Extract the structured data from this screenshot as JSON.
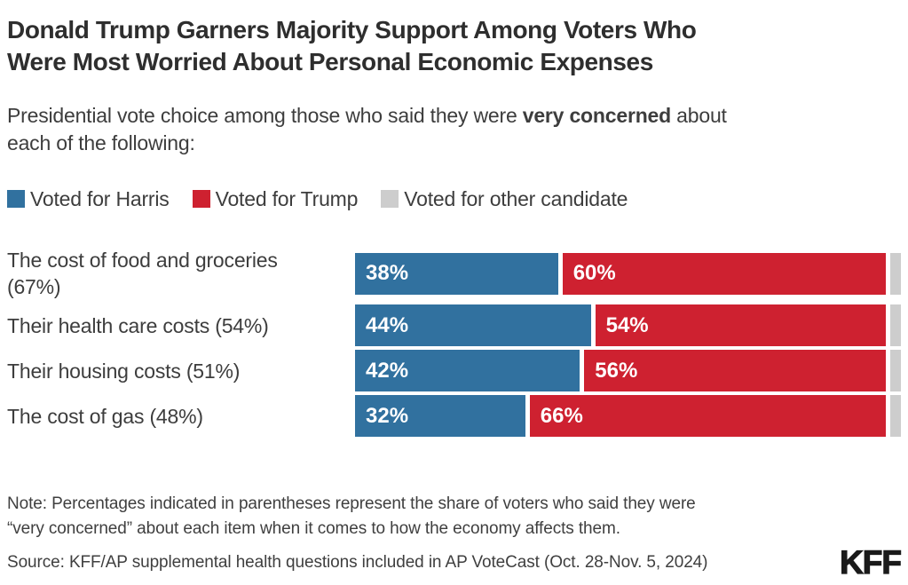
{
  "title": {
    "line1": "Donald Trump Garners Majority Support Among Voters Who",
    "line2": "Were Most Worried About Personal Economic Expenses"
  },
  "subtitle": {
    "prefix": "Presidential vote choice among those who said they were ",
    "bold": "very concerned",
    "suffix": " about",
    "line2": "each of the following:"
  },
  "colors": {
    "harris": "#31719F",
    "trump": "#CE2130",
    "other": "#CDCDCD"
  },
  "legend": [
    {
      "label": "Voted for Harris",
      "color": "#31719F"
    },
    {
      "label": "Voted for Trump",
      "color": "#CE2130"
    },
    {
      "label": "Voted for other candidate",
      "color": "#CDCDCD"
    }
  ],
  "chart_data": {
    "type": "bar",
    "stacked": true,
    "orientation": "horizontal",
    "xlim": [
      0,
      100
    ],
    "grid": false,
    "legend_position": "top",
    "categories": [
      "The cost of food and groceries (67%)",
      "Their health care costs (54%)",
      "Their housing costs (51%)",
      "The cost of gas (48%)"
    ],
    "series": [
      {
        "name": "Voted for Harris",
        "values": [
          38,
          44,
          42,
          32
        ]
      },
      {
        "name": "Voted for Trump",
        "values": [
          60,
          54,
          56,
          66
        ]
      },
      {
        "name": "Voted for other candidate",
        "values": [
          2,
          2,
          2,
          2
        ]
      }
    ],
    "rows": [
      {
        "label": "The cost of food and groceries (67%)",
        "harris": 38,
        "trump": 60,
        "other": 2,
        "harris_label": "38%",
        "trump_label": "60%"
      },
      {
        "label": "Their health care costs (54%)",
        "harris": 44,
        "trump": 54,
        "other": 2,
        "harris_label": "44%",
        "trump_label": "54%"
      },
      {
        "label": "Their housing costs (51%)",
        "harris": 42,
        "trump": 56,
        "other": 2,
        "harris_label": "42%",
        "trump_label": "56%"
      },
      {
        "label": "The cost of gas (48%)",
        "harris": 32,
        "trump": 66,
        "other": 2,
        "harris_label": "32%",
        "trump_label": "66%"
      }
    ]
  },
  "note": {
    "line1": "Note: Percentages indicated in parentheses represent the share of voters who said they were",
    "line2": "“very concerned” about each item when it comes to how the economy affects them."
  },
  "source": "Source: KFF/AP supplemental health questions included in AP VoteCast (Oct. 28-Nov. 5, 2024)",
  "logo": "KFF"
}
